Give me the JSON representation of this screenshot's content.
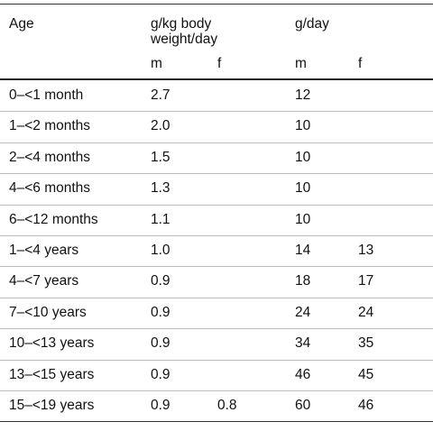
{
  "table": {
    "header": {
      "age": "Age",
      "gkg": "g/kg body weight/day",
      "gday": "g/day",
      "m_gkg": "m",
      "f_gkg": "f",
      "m_gday": "m",
      "f_gday": "f"
    },
    "rows": [
      [
        "0–<1 month",
        "2.7",
        null,
        "12",
        null
      ],
      [
        "1–<2 months",
        "2.0",
        null,
        "10",
        null
      ],
      [
        "2–<4 months",
        "1.5",
        null,
        "10",
        null
      ],
      [
        "4–<6 months",
        "1.3",
        null,
        "10",
        null
      ],
      [
        "6–<12 months",
        "1.1",
        null,
        "10",
        null
      ],
      [
        "1–<4 years",
        "1.0",
        null,
        "14",
        "13"
      ],
      [
        "4–<7 years",
        "0.9",
        null,
        "18",
        "17"
      ],
      [
        "7–<10 years",
        "0.9",
        null,
        "24",
        "24"
      ],
      [
        "10–<13 years",
        "0.9",
        null,
        "34",
        "35"
      ],
      [
        "13–<15 years",
        "0.9",
        null,
        "46",
        "45"
      ],
      [
        "15–<19 years",
        "0.9",
        "0.8",
        "60",
        "46"
      ]
    ]
  }
}
